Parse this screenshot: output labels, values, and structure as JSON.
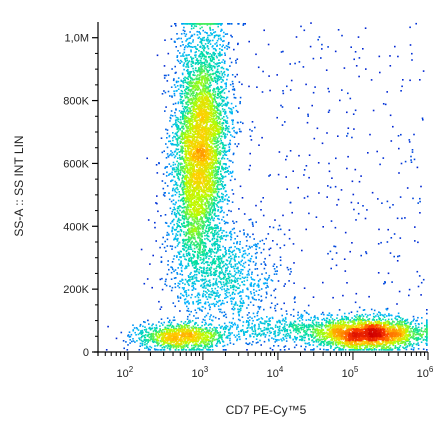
{
  "chart_data": {
    "type": "scatter",
    "subtype": "flow-cytometry-density-dot-plot",
    "xlabel": "CD7 PE-Cy™5",
    "ylabel": "SS-A :: SS INT LIN",
    "x_scale": "log",
    "x_range": [
      40,
      1000000
    ],
    "x_ticks": [
      {
        "value": 100,
        "base": "10",
        "exp": "2"
      },
      {
        "value": 1000,
        "base": "10",
        "exp": "3"
      },
      {
        "value": 10000,
        "base": "10",
        "exp": "4"
      },
      {
        "value": 100000,
        "base": "10",
        "exp": "5"
      },
      {
        "value": 1000000,
        "base": "10",
        "exp": "6"
      }
    ],
    "y_scale": "linear",
    "y_range": [
      0,
      1050000
    ],
    "y_ticks": [
      {
        "value": 0,
        "label": "0"
      },
      {
        "value": 200000,
        "label": "200K"
      },
      {
        "value": 400000,
        "label": "400K"
      },
      {
        "value": 600000,
        "label": "600K"
      },
      {
        "value": 800000,
        "label": "800K"
      },
      {
        "value": 1000000,
        "label": "1,0M"
      }
    ],
    "populations": [
      {
        "center_x": 900,
        "center_y": 650000,
        "weight": 0.52
      },
      {
        "center_x": 1800,
        "center_y": 250000,
        "weight": 0.08
      },
      {
        "center_x": 500,
        "center_y": 50000,
        "weight": 0.1
      },
      {
        "center_x": 160000,
        "center_y": 60000,
        "weight": 0.22
      },
      {
        "center_x": 15000,
        "center_y": 75000,
        "weight": 0.05
      }
    ],
    "color_scale": [
      "#0000c8",
      "#00b4ff",
      "#00e0a0",
      "#b4ff00",
      "#ffd000",
      "#ff4000",
      "#d00000"
    ],
    "grid": false,
    "legend": "none"
  }
}
